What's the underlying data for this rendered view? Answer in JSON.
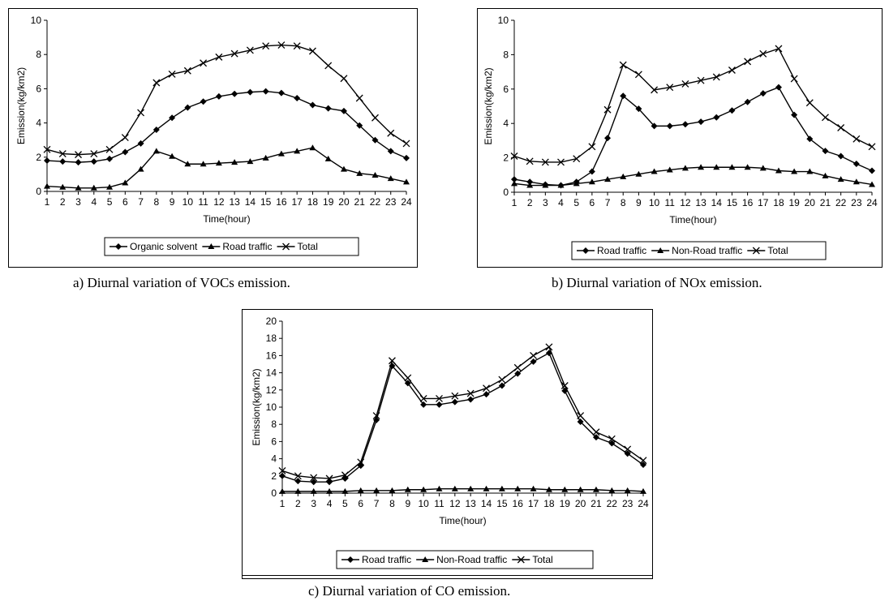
{
  "chart_data": [
    {
      "id": "a",
      "type": "line",
      "caption": "a) Diurnal variation of VOCs emission.",
      "xlabel": "Time(hour)",
      "ylabel": "Emission(kg/km2)",
      "x": [
        1,
        2,
        3,
        4,
        5,
        6,
        7,
        8,
        9,
        10,
        11,
        12,
        13,
        14,
        15,
        16,
        17,
        18,
        19,
        20,
        21,
        22,
        23,
        24
      ],
      "ylim": [
        0,
        10
      ],
      "yticks": [
        0,
        2,
        4,
        6,
        8,
        10
      ],
      "grid": false,
      "legend_position": "bottom",
      "series": [
        {
          "name": "Organic solvent",
          "marker": "diamond",
          "values": [
            1.8,
            1.75,
            1.7,
            1.75,
            1.9,
            2.3,
            2.8,
            3.6,
            4.3,
            4.9,
            5.25,
            5.55,
            5.7,
            5.8,
            5.85,
            5.75,
            5.45,
            5.05,
            4.85,
            4.7,
            3.85,
            3.0,
            2.35,
            1.95
          ]
        },
        {
          "name": "Road traffic",
          "marker": "triangle",
          "values": [
            0.3,
            0.25,
            0.2,
            0.2,
            0.25,
            0.5,
            1.3,
            2.35,
            2.05,
            1.6,
            1.6,
            1.65,
            1.7,
            1.75,
            1.95,
            2.2,
            2.35,
            2.55,
            1.9,
            1.3,
            1.05,
            0.95,
            0.75,
            0.55
          ]
        },
        {
          "name": "Total",
          "marker": "x",
          "values": [
            2.45,
            2.2,
            2.15,
            2.2,
            2.45,
            3.15,
            4.6,
            6.35,
            6.85,
            7.05,
            7.5,
            7.85,
            8.05,
            8.25,
            8.5,
            8.55,
            8.5,
            8.2,
            7.35,
            6.6,
            5.45,
            4.3,
            3.4,
            2.8
          ]
        }
      ]
    },
    {
      "id": "b",
      "type": "line",
      "caption": "b) Diurnal variation of NOx emission.",
      "xlabel": "Time(hour)",
      "ylabel": "Emission(kg/km2)",
      "x": [
        1,
        2,
        3,
        4,
        5,
        6,
        7,
        8,
        9,
        10,
        11,
        12,
        13,
        14,
        15,
        16,
        17,
        18,
        19,
        20,
        21,
        22,
        23,
        24
      ],
      "ylim": [
        0,
        10
      ],
      "yticks": [
        0,
        2,
        4,
        6,
        8,
        10
      ],
      "grid": false,
      "legend_position": "bottom",
      "series": [
        {
          "name": "Road traffic",
          "marker": "diamond",
          "values": [
            0.75,
            0.6,
            0.45,
            0.4,
            0.6,
            1.2,
            3.15,
            5.6,
            4.85,
            3.85,
            3.85,
            3.95,
            4.1,
            4.35,
            4.75,
            5.25,
            5.75,
            6.1,
            4.5,
            3.1,
            2.4,
            2.1,
            1.65,
            1.25
          ]
        },
        {
          "name": "Non-Road traffic",
          "marker": "triangle",
          "values": [
            0.5,
            0.4,
            0.4,
            0.4,
            0.5,
            0.6,
            0.75,
            0.9,
            1.05,
            1.2,
            1.3,
            1.4,
            1.45,
            1.45,
            1.45,
            1.45,
            1.4,
            1.25,
            1.2,
            1.2,
            0.95,
            0.75,
            0.6,
            0.45
          ]
        },
        {
          "name": "Total",
          "marker": "x",
          "values": [
            2.1,
            1.8,
            1.75,
            1.75,
            1.95,
            2.65,
            4.8,
            7.4,
            6.85,
            5.95,
            6.1,
            6.3,
            6.5,
            6.7,
            7.1,
            7.6,
            8.05,
            8.35,
            6.6,
            5.2,
            4.35,
            3.75,
            3.1,
            2.65
          ]
        }
      ]
    },
    {
      "id": "c",
      "type": "line",
      "caption": "c) Diurnal variation of CO emission.",
      "xlabel": "Time(hour)",
      "ylabel": "Emission(kg/km2)",
      "x": [
        1,
        2,
        3,
        4,
        5,
        6,
        7,
        8,
        9,
        10,
        11,
        12,
        13,
        14,
        15,
        16,
        17,
        18,
        19,
        20,
        21,
        22,
        23,
        24
      ],
      "ylim": [
        0,
        20
      ],
      "yticks": [
        0,
        2,
        4,
        6,
        8,
        10,
        12,
        14,
        16,
        18,
        20
      ],
      "grid": false,
      "legend_position": "bottom",
      "series": [
        {
          "name": "Road traffic",
          "marker": "diamond",
          "values": [
            2.0,
            1.4,
            1.3,
            1.3,
            1.7,
            3.2,
            8.5,
            14.8,
            12.8,
            10.3,
            10.3,
            10.6,
            10.9,
            11.5,
            12.5,
            13.9,
            15.3,
            16.3,
            11.9,
            8.3,
            6.5,
            5.8,
            4.6,
            3.3
          ]
        },
        {
          "name": "Non-Road traffic",
          "marker": "triangle",
          "values": [
            0.2,
            0.2,
            0.2,
            0.2,
            0.2,
            0.3,
            0.3,
            0.3,
            0.4,
            0.4,
            0.5,
            0.5,
            0.5,
            0.5,
            0.5,
            0.5,
            0.5,
            0.4,
            0.4,
            0.4,
            0.4,
            0.3,
            0.3,
            0.2
          ]
        },
        {
          "name": "Total",
          "marker": "x",
          "values": [
            2.6,
            2.0,
            1.8,
            1.7,
            2.1,
            3.6,
            9.0,
            15.4,
            13.4,
            11.0,
            11.0,
            11.3,
            11.6,
            12.2,
            13.2,
            14.6,
            16.0,
            17.0,
            12.5,
            9.0,
            7.1,
            6.3,
            5.1,
            3.8
          ]
        }
      ]
    }
  ]
}
